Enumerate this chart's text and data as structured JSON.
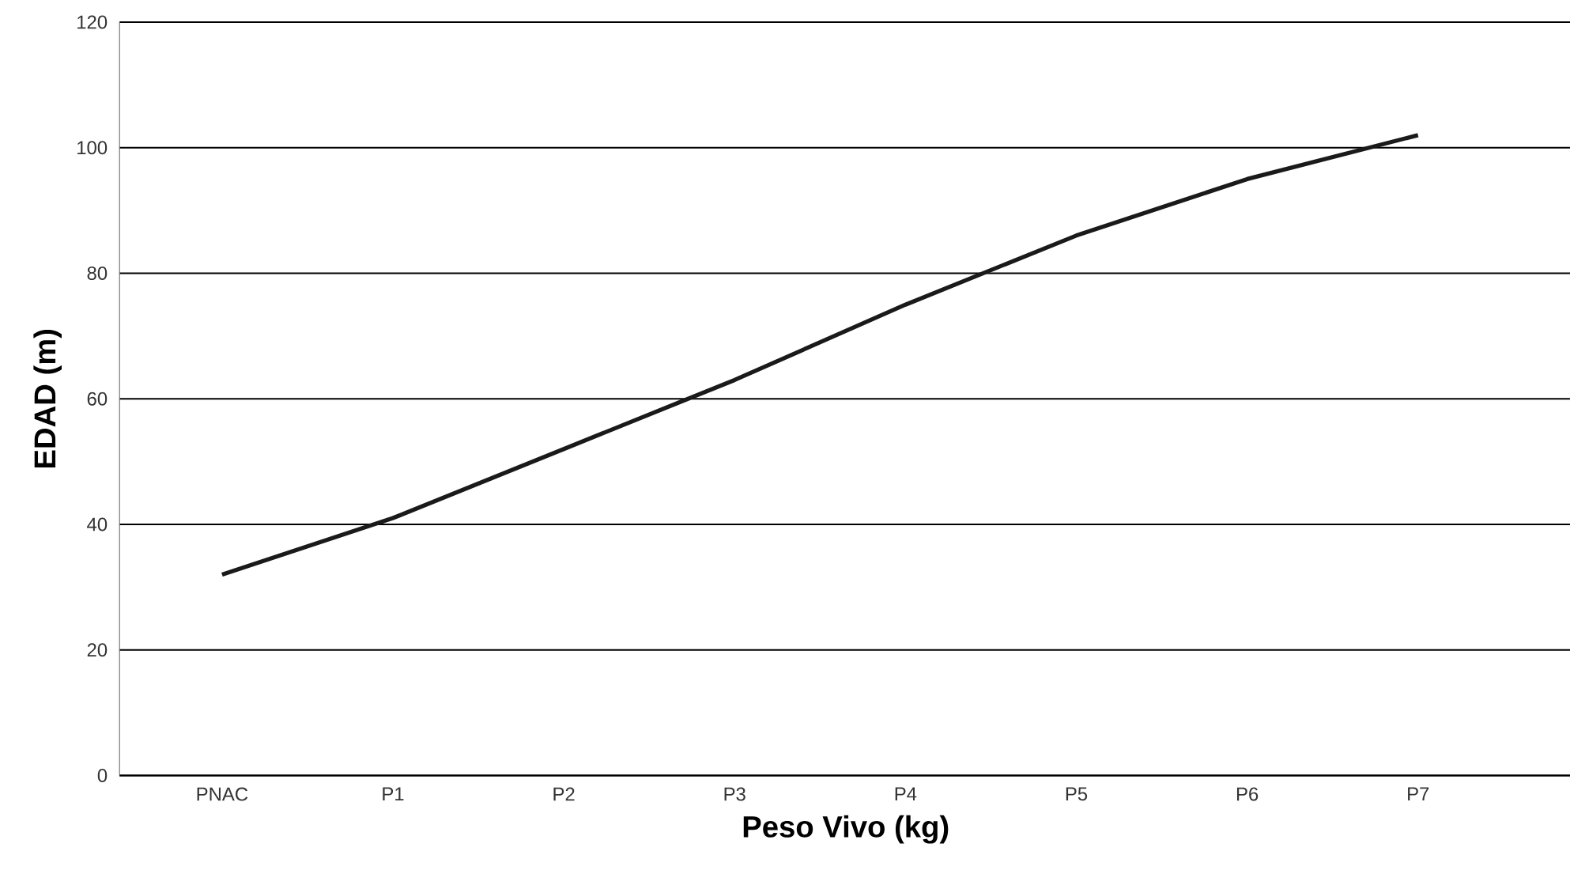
{
  "chart_data": {
    "type": "line",
    "xlabel": "Peso Vivo (kg)",
    "ylabel": "EDAD (m)",
    "categories": [
      "PNAC",
      "P1",
      "P2",
      "P3",
      "P4",
      "P5",
      "P6",
      "P7"
    ],
    "values": [
      32,
      41,
      52,
      63,
      75,
      86,
      95,
      102
    ],
    "color": "#1a1a1a",
    "ylim": [
      0,
      120
    ],
    "yticks": [
      0,
      20,
      40,
      60,
      80,
      100,
      120
    ],
    "grid": "y",
    "marker": "none",
    "line_style": "solid"
  }
}
